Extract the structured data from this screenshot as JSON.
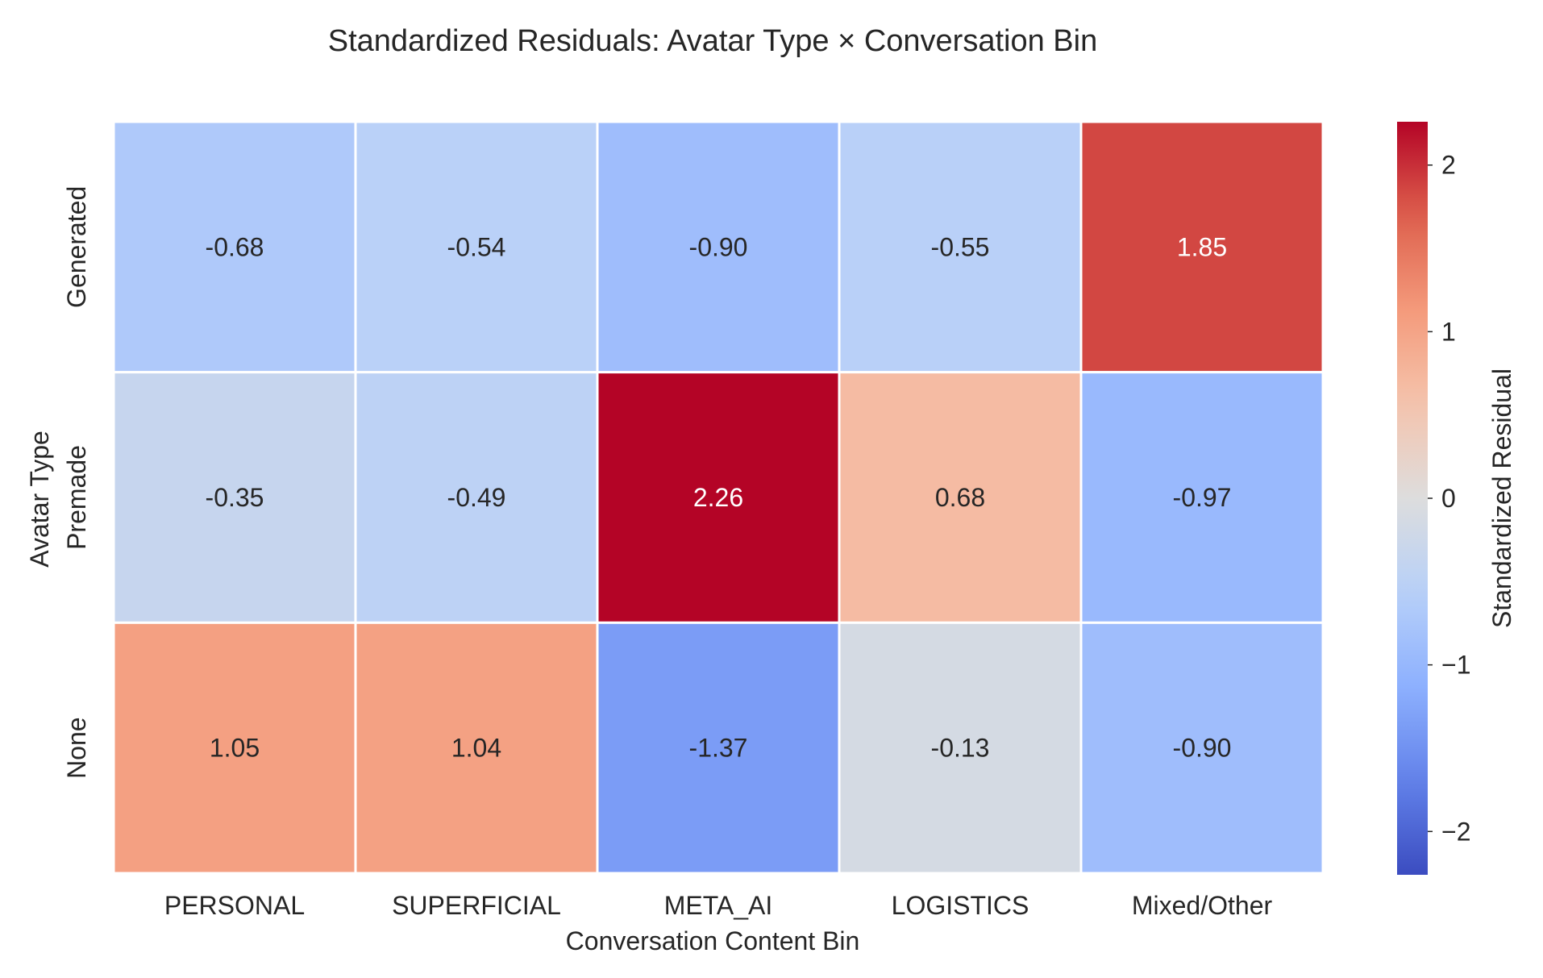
{
  "chart_data": {
    "type": "heatmap",
    "title": "Standardized Residuals: Avatar Type × Conversation Bin",
    "xlabel": "Conversation Content Bin",
    "ylabel": "Avatar Type",
    "x_categories": [
      "PERSONAL",
      "SUPERFICIAL",
      "META_AI",
      "LOGISTICS",
      "Mixed/Other"
    ],
    "y_categories": [
      "Generated",
      "Premade",
      "None"
    ],
    "values": [
      [
        -0.68,
        -0.54,
        -0.9,
        -0.55,
        1.85
      ],
      [
        -0.35,
        -0.49,
        2.26,
        0.68,
        -0.97
      ],
      [
        1.05,
        1.04,
        -1.37,
        -0.13,
        -0.9
      ]
    ],
    "value_labels": [
      [
        "-0.68",
        "-0.54",
        "-0.90",
        "-0.55",
        "1.85"
      ],
      [
        "-0.35",
        "-0.49",
        "2.26",
        "0.68",
        "-0.97"
      ],
      [
        "1.05",
        "1.04",
        "-1.37",
        "-0.13",
        "-0.90"
      ]
    ],
    "colormap": "coolwarm",
    "vmin": -2.26,
    "vmax": 2.26,
    "colorbar": {
      "label": "Standardized Residual",
      "ticks": [
        -2,
        -1,
        0,
        1,
        2
      ],
      "tick_labels": [
        "−2",
        "−1",
        "0",
        "1",
        "2"
      ]
    },
    "grid": false,
    "cell_separator_color": "#ffffff"
  }
}
